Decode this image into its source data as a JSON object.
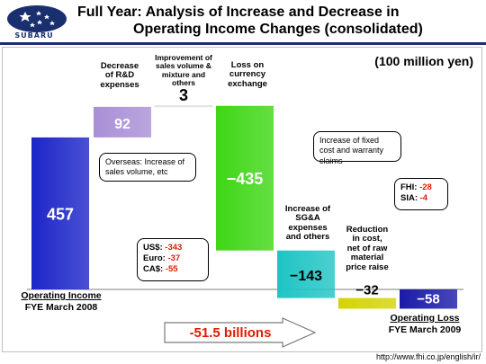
{
  "header": {
    "title_line1": "Full Year: Analysis of Increase and Decrease in",
    "title_line2": "Operating Income Changes (consolidated)",
    "brand": "SUBARU",
    "unit": "(100 million yen)"
  },
  "colors": {
    "start": "#1c25c8",
    "rnd": "#a98fd6",
    "sales": "#ffffff",
    "currency": "#3fd615",
    "sga": "#1fc4c4",
    "cost": "#d4d400",
    "end": "#1a1aa8",
    "brand": "#1a2f6e"
  },
  "chart_data": {
    "type": "bar",
    "subtype": "waterfall",
    "unit": "100 million yen",
    "categories": [
      "Operating Income FYE March 2008",
      "Decrease of R&D expenses",
      "Improvement of sales volume & mixture and others",
      "Loss on currency exchange",
      "Increase of SG&A expenses and others",
      "Reduction in cost, net of raw material price raise",
      "Operating Loss FYE March 2009"
    ],
    "values": [
      457,
      92,
      3,
      -435,
      -143,
      -32,
      -58
    ],
    "value_labels": [
      "457",
      "92",
      "3",
      "−435",
      "−143",
      "−32",
      "−58"
    ],
    "total_change_label": "-51.5 billions"
  },
  "labels": {
    "start_axis_line1": "Operating Income",
    "start_axis_line2": "FYE March 2008",
    "end_axis_line1": "Operating Loss",
    "end_axis_line2": "FYE March 2009",
    "rnd_line1": "Decrease",
    "rnd_line2": "of R&D",
    "rnd_line3": "expenses",
    "sales_line1": "Improvement of",
    "sales_line2": "sales volume &",
    "sales_line3": "mixture and",
    "sales_line4": "others",
    "currency_line1": "Loss on",
    "currency_line2": "currency",
    "currency_line3": "exchange",
    "sga_line1": "Increase of",
    "sga_line2": "SG&A",
    "sga_line3": "expenses",
    "sga_line4": "and others",
    "cost_line1": "Reduction",
    "cost_line2": "in cost,",
    "cost_line3": "net of raw",
    "cost_line4": "material",
    "cost_line5": "price raise"
  },
  "callouts": {
    "overseas": "Overseas: Increase of sales volume, etc",
    "fixed_cost": "Increase of fixed cost and warranty claims",
    "currency": [
      {
        "name": "US$:",
        "value": "-343"
      },
      {
        "name": "Euro:",
        "value": "-37"
      },
      {
        "name": "CA$:",
        "value": "-55"
      }
    ],
    "split": [
      {
        "name": "FHI:",
        "value": "-28"
      },
      {
        "name": "SIA:",
        "value": "-4"
      }
    ]
  },
  "footer": {
    "url": "http://www.fhi.co.jp/english/ir/"
  }
}
